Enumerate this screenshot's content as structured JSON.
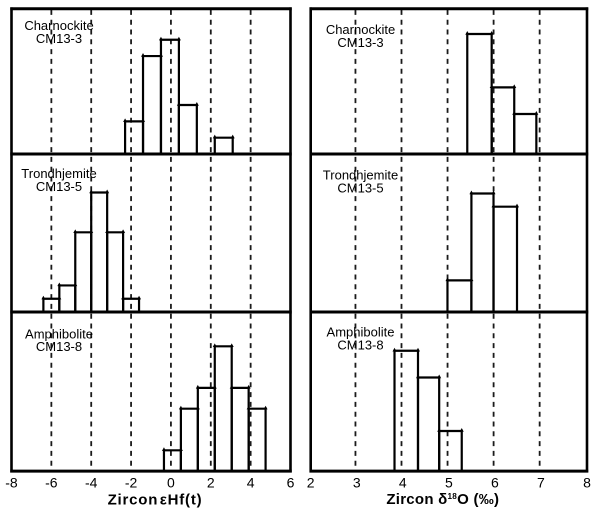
{
  "figure": {
    "background": "#ffffff",
    "ink_color": "#000000",
    "grid_color": "#1a1a1a",
    "grid_style": "dashed"
  },
  "chart_data": [
    {
      "type": "bar",
      "subtype": "histogram",
      "column": "left",
      "xlabel": "Zircon εHf(t)",
      "xlabel_parts": {
        "pre": "Zircon",
        "post": "εHf(t)"
      },
      "xlim": [
        -8,
        6
      ],
      "xticks": [
        "-8",
        "-6",
        "-4",
        "-2",
        "0",
        "2",
        "4",
        "6"
      ],
      "xtick_values": [
        -8,
        -6,
        -4,
        -2,
        0,
        2,
        4,
        6
      ],
      "gridline_values": [
        -6,
        -4,
        -2,
        0,
        2,
        4
      ],
      "legend": "none",
      "panels": [
        {
          "title_line1": "Charnockite",
          "title_line2": "CM13-3",
          "ylim": [
            0,
            8.9
          ],
          "bars": [
            {
              "x0": -2.3,
              "x1": -1.4,
              "count": 2
            },
            {
              "x0": -1.4,
              "x1": -0.5,
              "count": 6
            },
            {
              "x0": -0.5,
              "x1": 0.4,
              "count": 7
            },
            {
              "x0": 0.4,
              "x1": 1.3,
              "count": 3
            },
            {
              "x0": 2.2,
              "x1": 3.1,
              "count": 1
            }
          ]
        },
        {
          "title_line1": "Trondhjemite",
          "title_line2": "CM13-5",
          "ylim": [
            0,
            11.9
          ],
          "bars": [
            {
              "x0": -6.4,
              "x1": -5.6,
              "count": 1
            },
            {
              "x0": -5.6,
              "x1": -4.8,
              "count": 2
            },
            {
              "x0": -4.8,
              "x1": -4.0,
              "count": 6
            },
            {
              "x0": -4.0,
              "x1": -3.2,
              "count": 9
            },
            {
              "x0": -3.2,
              "x1": -2.4,
              "count": 6
            },
            {
              "x0": -2.4,
              "x1": -1.6,
              "count": 1
            }
          ]
        },
        {
          "title_line1": "Amphibolite",
          "title_line2": "CM13-8",
          "ylim": [
            0,
            7.65
          ],
          "bars": [
            {
              "x0": -0.35,
              "x1": 0.5,
              "count": 1
            },
            {
              "x0": 0.5,
              "x1": 1.35,
              "count": 3
            },
            {
              "x0": 1.35,
              "x1": 2.2,
              "count": 4
            },
            {
              "x0": 2.2,
              "x1": 3.05,
              "count": 6
            },
            {
              "x0": 3.05,
              "x1": 3.9,
              "count": 4
            },
            {
              "x0": 3.9,
              "x1": 4.75,
              "count": 3
            }
          ]
        }
      ]
    },
    {
      "type": "bar",
      "subtype": "histogram",
      "column": "right",
      "xlabel": "Zircon δ18O (‰)",
      "xlabel_parts": {
        "pre": "Zircon δ",
        "sup": "18",
        "post": "O (‰)"
      },
      "xlim": [
        2,
        8
      ],
      "xticks": [
        "2",
        "3",
        "4",
        "5",
        "6",
        "7",
        "8"
      ],
      "xtick_values": [
        2,
        3,
        4,
        5,
        6,
        7,
        8
      ],
      "gridline_values": [
        3,
        4,
        5,
        6,
        7
      ],
      "legend": "none",
      "panels": [
        {
          "title_line1": "Charnockite",
          "title_line2": "CM13-3",
          "ylim": [
            0,
            10.9
          ],
          "bars": [
            {
              "x0": 5.4,
              "x1": 5.93,
              "count": 9
            },
            {
              "x0": 5.93,
              "x1": 6.42,
              "count": 5
            },
            {
              "x0": 6.42,
              "x1": 6.9,
              "count": 3
            }
          ]
        },
        {
          "title_line1": "Trondhjemite",
          "title_line2": "CM13-5",
          "ylim": [
            0,
            12
          ],
          "bars": [
            {
              "x0": 4.97,
              "x1": 5.49,
              "count": 2.4
            },
            {
              "x0": 5.49,
              "x1": 5.97,
              "count": 9
            },
            {
              "x0": 5.97,
              "x1": 6.48,
              "count": 8
            }
          ]
        },
        {
          "title_line1": "Amphibolite",
          "title_line2": "CM13-8",
          "ylim": [
            0,
            11.9
          ],
          "bars": [
            {
              "x0": 3.82,
              "x1": 4.33,
              "count": 9
            },
            {
              "x0": 4.33,
              "x1": 4.79,
              "count": 7
            },
            {
              "x0": 4.79,
              "x1": 5.28,
              "count": 3
            }
          ]
        }
      ]
    }
  ]
}
